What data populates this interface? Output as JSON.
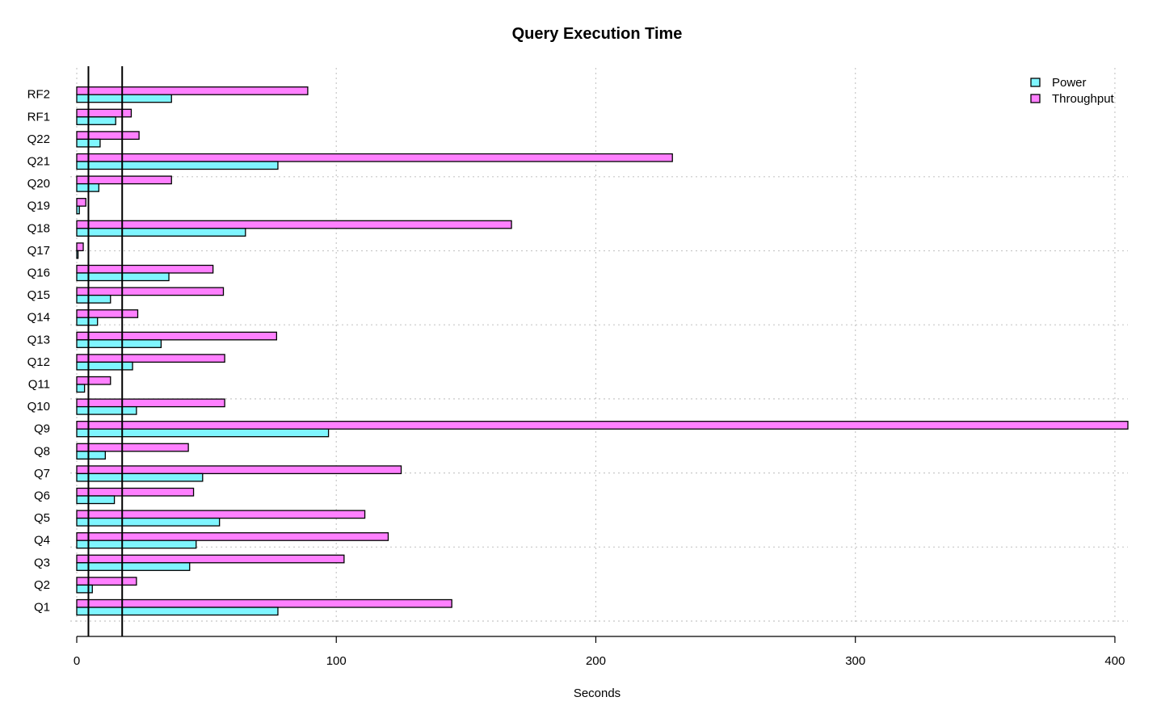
{
  "chart_data": {
    "type": "bar",
    "orientation": "horizontal",
    "title": "Query Execution Time",
    "xlabel": "Seconds",
    "ylabel": "",
    "xlim": [
      0,
      405
    ],
    "xticks": [
      0,
      100,
      200,
      300,
      400
    ],
    "grid": true,
    "legend_position": "top-right",
    "reference_lines": [
      4.5,
      17.5
    ],
    "categories": [
      "Q1",
      "Q2",
      "Q3",
      "Q4",
      "Q5",
      "Q6",
      "Q7",
      "Q8",
      "Q9",
      "Q10",
      "Q11",
      "Q12",
      "Q13",
      "Q14",
      "Q15",
      "Q16",
      "Q17",
      "Q18",
      "Q19",
      "Q20",
      "Q21",
      "Q22",
      "RF1",
      "RF2"
    ],
    "series": [
      {
        "name": "Power",
        "color": "#7ff5ff",
        "values": [
          77.5,
          6,
          43.5,
          46,
          55,
          14.5,
          48.5,
          11,
          97,
          23,
          3,
          21.5,
          32.5,
          8,
          13,
          35.5,
          0.5,
          65,
          1,
          8.5,
          77.5,
          9,
          15,
          36.5
        ]
      },
      {
        "name": "Throughput",
        "color": "#ff80ff",
        "values": [
          144.5,
          23,
          103,
          120,
          111,
          45,
          125,
          43,
          405,
          57,
          13,
          57,
          77,
          23.5,
          56.5,
          52.5,
          2.5,
          167.5,
          3.5,
          36.5,
          229.5,
          24,
          21,
          89
        ]
      }
    ]
  }
}
